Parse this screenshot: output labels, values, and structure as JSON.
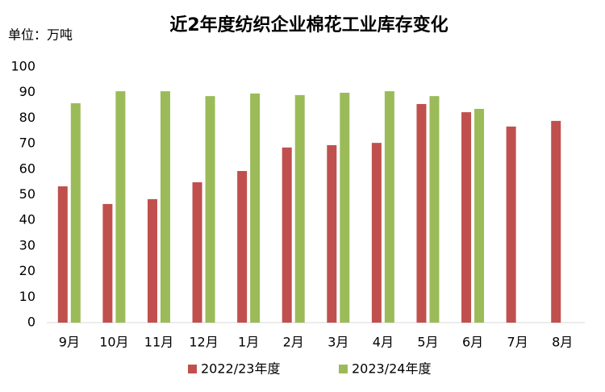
{
  "chart_data": {
    "type": "bar",
    "title": "近2年度纺织企业棉花工业库存变化",
    "unit_label": "单位：万吨",
    "categories": [
      "9月",
      "10月",
      "11月",
      "12月",
      "1月",
      "2月",
      "3月",
      "4月",
      "5月",
      "6月",
      "7月",
      "8月"
    ],
    "series": [
      {
        "name": "2022/23年度",
        "color": "#c0504d",
        "values": [
          53.3,
          46.4,
          48.3,
          54.9,
          59.3,
          68.5,
          69.4,
          70.3,
          85.5,
          82.3,
          76.7,
          78.9
        ]
      },
      {
        "name": "2023/24年度",
        "color": "#9bbb59",
        "values": [
          85.8,
          90.5,
          90.5,
          88.6,
          89.6,
          89.0,
          89.9,
          90.5,
          88.6,
          83.6,
          null,
          null
        ]
      }
    ],
    "ylim": [
      0,
      100
    ],
    "yticks": [
      0,
      10,
      20,
      30,
      40,
      50,
      60,
      70,
      80,
      90,
      100
    ],
    "grid": false,
    "legend": "bottom"
  }
}
